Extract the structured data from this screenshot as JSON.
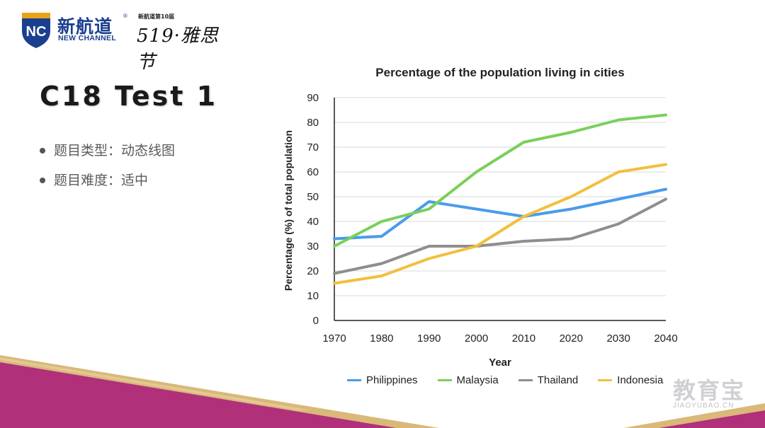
{
  "brand": {
    "name_cn": "新航道",
    "name_en": "NEW CHANNEL",
    "mark": "NC",
    "registered": "®",
    "festival_top": "新航道第10届",
    "festival": "519·雅思节"
  },
  "slide": {
    "title": "C18 Test 1",
    "bullets": [
      "题目类型：动态线图",
      "题目难度：适中"
    ]
  },
  "watermark": {
    "text": "教育宝",
    "sub": "JIAOYUBAO.CN"
  },
  "colors": {
    "brand_blue": "#1b3f8f",
    "brand_gold": "#e8a317",
    "footer_magenta": "#b0307a",
    "footer_gold": "#c8a45a"
  },
  "chart_data": {
    "type": "line",
    "title": "Percentage of the population living in cities",
    "xlabel": "Year",
    "ylabel": "Percentage (%) of total population",
    "x": [
      "1970",
      "1980",
      "1990",
      "2000",
      "2010",
      "2020",
      "2030",
      "2040"
    ],
    "ylim": [
      0,
      90
    ],
    "yticks": [
      0,
      10,
      20,
      30,
      40,
      50,
      60,
      70,
      80,
      90
    ],
    "grid": true,
    "legend_position": "bottom",
    "series": [
      {
        "name": "Philippines",
        "color": "#4a9bec",
        "values": [
          33,
          34,
          48,
          45,
          42,
          45,
          49,
          53
        ]
      },
      {
        "name": "Malaysia",
        "color": "#79d05a",
        "values": [
          30,
          40,
          45,
          60,
          72,
          76,
          81,
          83
        ]
      },
      {
        "name": "Thailand",
        "color": "#8e8e8e",
        "values": [
          19,
          23,
          30,
          30,
          32,
          33,
          39,
          49
        ]
      },
      {
        "name": "Indonesia",
        "color": "#f2bf3d",
        "values": [
          15,
          18,
          25,
          30,
          42,
          50,
          60,
          63
        ]
      }
    ]
  }
}
